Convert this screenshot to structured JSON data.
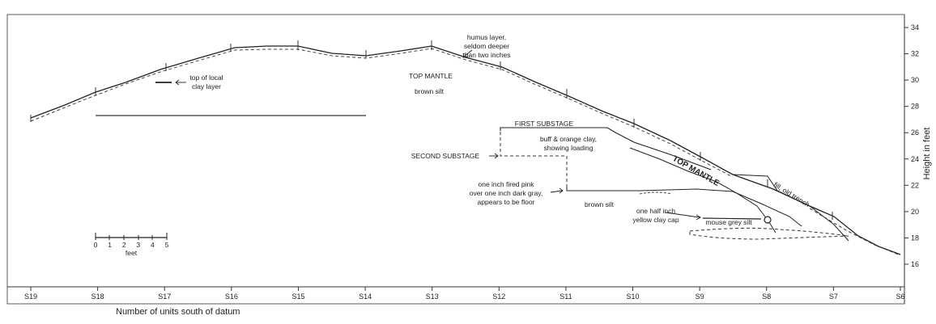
{
  "figure": {
    "x_axis": {
      "title": "Number of units south of datum",
      "ticks": [
        "S19",
        "S18",
        "S17",
        "S16",
        "S15",
        "S14",
        "S13",
        "S12",
        "S11",
        "S10",
        "S9",
        "S8",
        "S7",
        "S6"
      ]
    },
    "y_axis": {
      "title": "Height in feet",
      "ticks": [
        "16",
        "18",
        "20",
        "22",
        "24",
        "26",
        "28",
        "30",
        "32",
        "34"
      ]
    },
    "scale_bar": {
      "ticks": [
        "0",
        "1",
        "2",
        "3",
        "4",
        "5"
      ],
      "unit": "feet"
    },
    "annotations": {
      "humus_1": "humus layer,",
      "humus_2": "seldom deeper",
      "humus_3": "than two inches",
      "top_local_1": "top of local",
      "top_local_2": "clay layer",
      "top_mantle": "TOP MANTLE",
      "brown_silt_upper": "brown silt",
      "first_substage": "FIRST SUBSTAGE",
      "buff_1": "buff & orange clay,",
      "buff_2": "showing loading",
      "second_substage": "SECOND SUBSTAGE",
      "fired_1": "one inch fired pink",
      "fired_2": "over one inch dark gray,",
      "fired_3": "appears to be floor",
      "brown_silt_lower": "brown silt",
      "top_mantle_slope": "TOP MANTLE",
      "fill_trench": "fill, old trench",
      "half_inch_1": "one half inch",
      "half_inch_2": "yellow clay cap",
      "mouse_grey": "mouse grey silt"
    }
  }
}
